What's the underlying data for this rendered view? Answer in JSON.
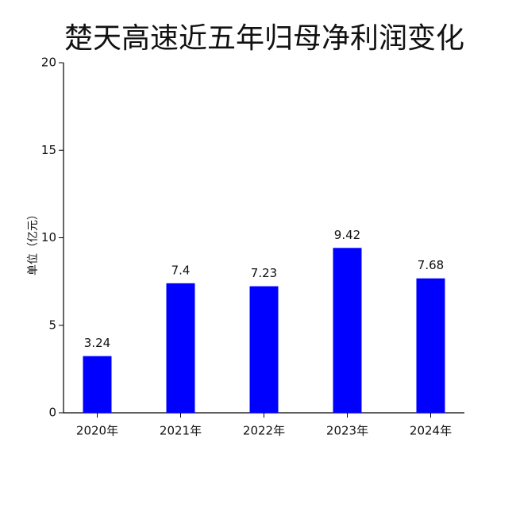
{
  "chart_data": {
    "type": "bar",
    "title": "楚天高速近五年归母净利润变化",
    "y_label": "单位（亿元）",
    "categories": [
      "2020年",
      "2021年",
      "2022年",
      "2023年",
      "2024年"
    ],
    "values": [
      3.24,
      7.4,
      7.23,
      9.42,
      7.68
    ],
    "color": "#0000ff",
    "ylim": [
      0,
      20
    ],
    "yticks": [
      0,
      5,
      10,
      15,
      20
    ],
    "grid": false
  }
}
